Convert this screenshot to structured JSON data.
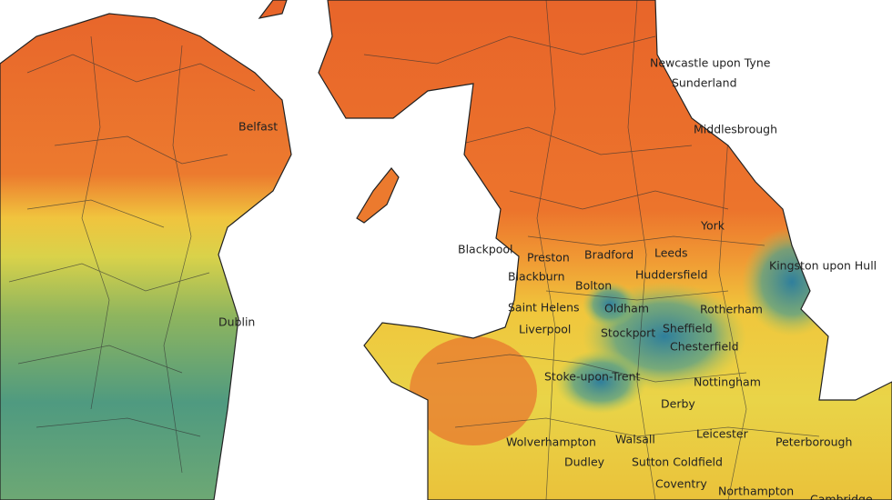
{
  "map": {
    "places": [
      "Newcastle upon Tyne",
      "Sunderland",
      "Middlesbrough",
      "York",
      "Leeds",
      "Blackpool",
      "Preston",
      "Bradford",
      "Blackburn",
      "Huddersfield",
      "Kingston upon Hull",
      "Bolton",
      "Oldham",
      "Saint Helens",
      "Rotherham",
      "Liverpool",
      "Stockport",
      "Sheffield",
      "Chesterfield",
      "Stoke-upon-Trent",
      "Nottingham",
      "Derby",
      "Leicester",
      "Wolverhampton",
      "Walsall",
      "Peterborough",
      "Dudley",
      "Sutton Coldfield",
      "Coventry",
      "Northampton",
      "Cambridge",
      "Belfast",
      "Dublin"
    ]
  }
}
